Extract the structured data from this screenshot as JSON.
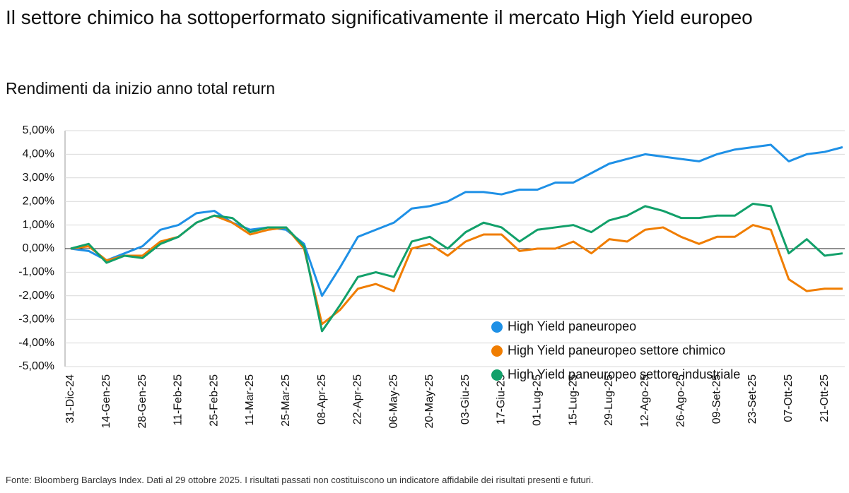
{
  "title": "Il settore chimico ha sottoperformato significativamente il mercato High Yield europeo",
  "subtitle": "Rendimenti da inizio anno total return",
  "source": "Fonte: Bloomberg Barclays Index. Dati al 29 ottobre 2025. I risultati passati non costituiscono un indicatore affidabile dei risultati presenti e futuri.",
  "chart_data": {
    "type": "line",
    "categories": [
      "31-Dic-24",
      null,
      "14-Gen-25",
      null,
      "28-Gen-25",
      null,
      "11-Feb-25",
      null,
      "25-Feb-25",
      null,
      "11-Mar-25",
      null,
      "25-Mar-25",
      null,
      "08-Apr-25",
      null,
      "22-Apr-25",
      null,
      "06-May-25",
      null,
      "20-May-25",
      null,
      "03-Giu-25",
      null,
      "17-Giu-25",
      null,
      "01-Lug-25",
      null,
      "15-Lug-25",
      null,
      "29-Lug-25",
      null,
      "12-Ago-25",
      null,
      "26-Ago-25",
      null,
      "09-Set-25",
      null,
      "23-Set-25",
      null,
      "07-Ott-25",
      null,
      "21-Ott-25",
      null
    ],
    "series": [
      {
        "name": "High Yield paneuropeo",
        "color": "#1e90e6",
        "values": [
          0,
          -0.1,
          -0.5,
          -0.2,
          0.1,
          0.8,
          1.0,
          1.5,
          1.6,
          1.1,
          0.8,
          0.9,
          0.8,
          0.2,
          -2.0,
          -0.8,
          0.5,
          0.8,
          1.1,
          1.7,
          1.8,
          2.0,
          2.4,
          2.4,
          2.3,
          2.5,
          2.5,
          2.8,
          2.8,
          3.2,
          3.6,
          3.8,
          4.0,
          3.9,
          3.8,
          3.7,
          4.0,
          4.2,
          4.3,
          4.4,
          3.7,
          4.0,
          4.1,
          4.3
        ]
      },
      {
        "name": "High Yield paneuropeo settore chimico",
        "color": "#f07d00",
        "values": [
          0,
          0.1,
          -0.5,
          -0.3,
          -0.3,
          0.3,
          0.5,
          1.1,
          1.4,
          1.1,
          0.6,
          0.8,
          0.9,
          0.0,
          -3.2,
          -2.6,
          -1.7,
          -1.5,
          -1.8,
          0.0,
          0.2,
          -0.3,
          0.3,
          0.6,
          0.6,
          -0.1,
          0.0,
          0.0,
          0.3,
          -0.2,
          0.4,
          0.3,
          0.8,
          0.9,
          0.5,
          0.2,
          0.5,
          0.5,
          1.0,
          0.8,
          -1.3,
          -1.8,
          -1.7,
          -1.7
        ]
      },
      {
        "name": "High Yield paneuropeo settore industriale",
        "color": "#12a06a",
        "values": [
          0,
          0.2,
          -0.6,
          -0.3,
          -0.4,
          0.2,
          0.5,
          1.1,
          1.4,
          1.3,
          0.7,
          0.9,
          0.9,
          0.1,
          -3.5,
          -2.4,
          -1.2,
          -1.0,
          -1.2,
          0.3,
          0.5,
          0.0,
          0.7,
          1.1,
          0.9,
          0.3,
          0.8,
          0.9,
          1.0,
          0.7,
          1.2,
          1.4,
          1.8,
          1.6,
          1.3,
          1.3,
          1.4,
          1.4,
          1.9,
          1.8,
          -0.2,
          0.4,
          -0.3,
          -0.2
        ]
      }
    ],
    "ylim": [
      -5,
      5
    ],
    "yticks": [
      {
        "value": 5,
        "label": "5,00%"
      },
      {
        "value": 4,
        "label": "4,00%"
      },
      {
        "value": 3,
        "label": "3,00%"
      },
      {
        "value": 2,
        "label": "2,00%"
      },
      {
        "value": 1,
        "label": "1,00%"
      },
      {
        "value": 0,
        "label": "0,00%"
      },
      {
        "value": -1,
        "label": "-1,00%"
      },
      {
        "value": -2,
        "label": "-2,00%"
      },
      {
        "value": -3,
        "label": "-3,00%"
      },
      {
        "value": -4,
        "label": "-4,00%"
      },
      {
        "value": -5,
        "label": "-5,00%"
      }
    ],
    "grid": true
  }
}
